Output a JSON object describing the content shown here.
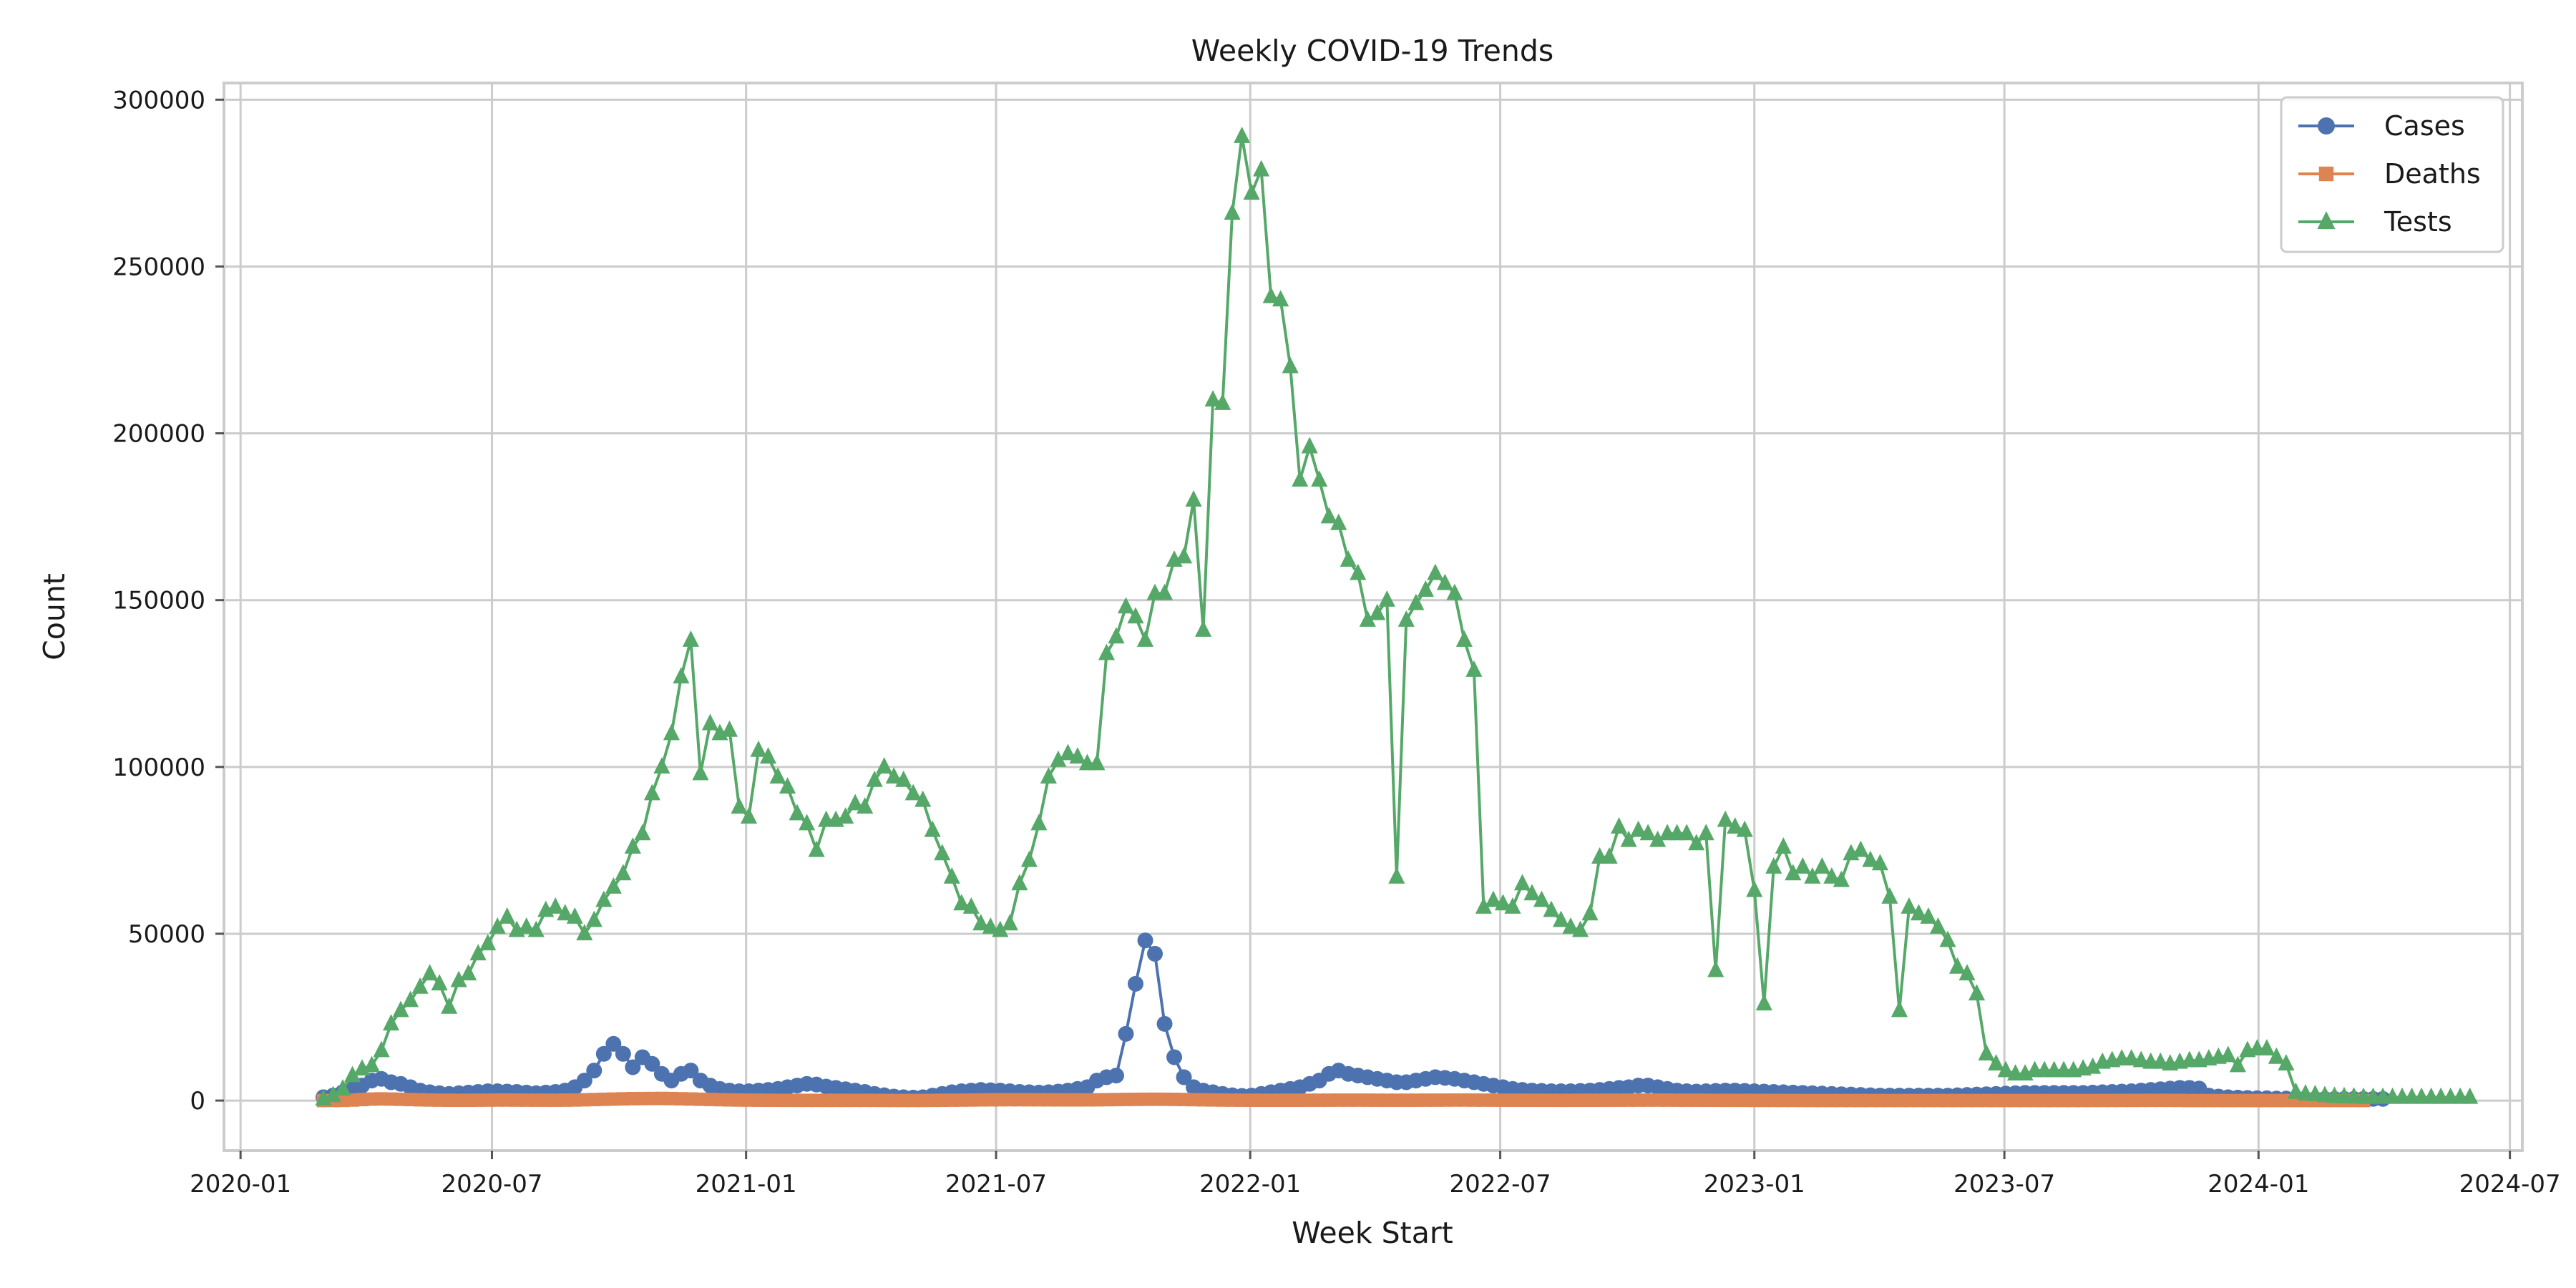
{
  "chart_data": {
    "type": "line",
    "title": "Weekly COVID-19 Trends",
    "xlabel": "Week Start",
    "ylabel": "Count",
    "x_range": [
      "2019-12-20",
      "2024-07-10"
    ],
    "ylim": [
      -15000,
      305000
    ],
    "x_ticks": [
      "2020-01",
      "2020-07",
      "2021-01",
      "2021-07",
      "2022-01",
      "2022-07",
      "2023-01",
      "2023-07",
      "2024-01",
      "2024-07"
    ],
    "y_ticks": [
      0,
      50000,
      100000,
      150000,
      200000,
      250000,
      300000
    ],
    "grid": true,
    "legend_position": "top-right",
    "x_start": "2020-03-01",
    "x_step_days": 7,
    "series": [
      {
        "name": "Cases",
        "color": "#4c72b0",
        "marker": "circle",
        "values": [
          1000,
          1500,
          2500,
          3500,
          4500,
          6000,
          6500,
          5500,
          5000,
          4000,
          3000,
          2500,
          2200,
          2000,
          2200,
          2400,
          2600,
          2800,
          2800,
          2700,
          2600,
          2400,
          2200,
          2400,
          2600,
          3000,
          4000,
          6000,
          9000,
          14000,
          17000,
          14000,
          10000,
          13000,
          11000,
          8000,
          6000,
          8000,
          9000,
          6000,
          4500,
          3500,
          3000,
          2800,
          2800,
          3000,
          3200,
          3500,
          4000,
          4500,
          5000,
          4800,
          4200,
          3800,
          3400,
          3000,
          2600,
          2000,
          1600,
          1200,
          1000,
          900,
          1000,
          1500,
          2000,
          2500,
          2800,
          3000,
          3200,
          3100,
          3000,
          2800,
          2600,
          2500,
          2400,
          2500,
          2700,
          3000,
          3500,
          4000,
          6000,
          7000,
          7500,
          20000,
          35000,
          48000,
          44000,
          23000,
          13000,
          7000,
          4000,
          3000,
          2500,
          2000,
          1600,
          1400,
          1500,
          2000,
          2500,
          3000,
          3500,
          4000,
          5000,
          6000,
          8000,
          9000,
          8000,
          7500,
          7000,
          6500,
          6000,
          5500,
          5500,
          6000,
          6500,
          7000,
          6800,
          6500,
          6000,
          5500,
          5000,
          4500,
          4000,
          3500,
          3200,
          3000,
          2900,
          2800,
          2800,
          2800,
          2900,
          3000,
          3200,
          3500,
          3800,
          4000,
          4500,
          4500,
          4000,
          3500,
          3000,
          2800,
          2700,
          2800,
          2900,
          3000,
          3000,
          2900,
          2800,
          2700,
          2600,
          2500,
          2400,
          2300,
          2200,
          2100,
          2000,
          1900,
          1800,
          1700,
          1600,
          1500,
          1500,
          1500,
          1500,
          1500,
          1500,
          1500,
          1500,
          1600,
          1700,
          1800,
          1900,
          2000,
          2100,
          2200,
          2300,
          2300,
          2300,
          2300,
          2300,
          2300,
          2300,
          2400,
          2500,
          2600,
          2700,
          2800,
          3000,
          3200,
          3400,
          3600,
          3800,
          3800,
          3600,
          1500,
          1200,
          1000,
          900,
          800,
          700,
          700,
          600,
          600,
          500,
          500,
          500,
          500,
          500,
          500,
          500,
          500,
          500,
          500
        ]
      },
      {
        "name": "Deaths",
        "color": "#dd8452",
        "marker": "square",
        "values": [
          0,
          10,
          50,
          150,
          300,
          450,
          500,
          450,
          380,
          300,
          220,
          160,
          120,
          90,
          80,
          90,
          110,
          130,
          150,
          150,
          140,
          130,
          120,
          110,
          110,
          130,
          170,
          230,
          300,
          380,
          450,
          520,
          580,
          600,
          620,
          640,
          600,
          540,
          470,
          400,
          330,
          260,
          200,
          160,
          130,
          110,
          90,
          80,
          70,
          60,
          60,
          60,
          60,
          60,
          60,
          60,
          60,
          55,
          50,
          45,
          40,
          40,
          45,
          60,
          80,
          110,
          140,
          170,
          200,
          220,
          240,
          250,
          250,
          240,
          230,
          220,
          210,
          200,
          200,
          210,
          230,
          260,
          300,
          340,
          370,
          390,
          400,
          390,
          360,
          320,
          270,
          220,
          180,
          150,
          130,
          110,
          100,
          90,
          90,
          90,
          90,
          90,
          100,
          110,
          120,
          130,
          130,
          130,
          120,
          110,
          100,
          100,
          100,
          110,
          120,
          130,
          140,
          150,
          150,
          140,
          130,
          120,
          110,
          100,
          95,
          90,
          85,
          80,
          80,
          80,
          85,
          90,
          95,
          100,
          110,
          120,
          130,
          140,
          140,
          130,
          120,
          110,
          100,
          90,
          80,
          70,
          65,
          60,
          55,
          50,
          45,
          40,
          35,
          30,
          30,
          25,
          25,
          20,
          20,
          20,
          20,
          20,
          20,
          20,
          20,
          20,
          20,
          20,
          20,
          20,
          20,
          20,
          20,
          20,
          20,
          20,
          20,
          20,
          20,
          20,
          20,
          20,
          25,
          30,
          35,
          40,
          45,
          50,
          55,
          60,
          60,
          55,
          50,
          10,
          5,
          5,
          5,
          5,
          5,
          5,
          5,
          5,
          5,
          5,
          5,
          5,
          5,
          5,
          5,
          5,
          5,
          5
        ]
      },
      {
        "name": "Tests",
        "color": "#55a868",
        "marker": "triangle",
        "values": [
          500,
          1500,
          3500,
          7500,
          9500,
          10500,
          15000,
          23000,
          27000,
          30000,
          34000,
          38000,
          35000,
          28000,
          36000,
          38000,
          44000,
          47000,
          52000,
          55000,
          51000,
          52000,
          51000,
          57000,
          58000,
          56000,
          55000,
          50000,
          54000,
          60000,
          64000,
          68000,
          76000,
          80000,
          92000,
          100000,
          110000,
          127000,
          138000,
          98000,
          113000,
          110000,
          111000,
          88000,
          85000,
          105000,
          103000,
          97000,
          94000,
          86000,
          83000,
          75000,
          84000,
          84000,
          85000,
          89000,
          88000,
          96000,
          100000,
          97000,
          96000,
          92000,
          90000,
          81000,
          74000,
          67000,
          59000,
          58000,
          53000,
          52000,
          51000,
          53000,
          65000,
          72000,
          83000,
          97000,
          102000,
          104000,
          103000,
          101000,
          101000,
          134000,
          139000,
          148000,
          145000,
          138000,
          152000,
          152000,
          162000,
          163000,
          180000,
          141000,
          210000,
          209000,
          266000,
          289000,
          272000,
          279000,
          241000,
          240000,
          220000,
          186000,
          196000,
          186000,
          175000,
          173000,
          162000,
          158000,
          144000,
          146000,
          150000,
          67000,
          144000,
          149000,
          153000,
          158000,
          155000,
          152000,
          138000,
          129000,
          58000,
          60000,
          59000,
          58000,
          65000,
          62000,
          60000,
          57000,
          54000,
          52000,
          51000,
          56000,
          73000,
          73000,
          82000,
          78000,
          81000,
          80000,
          78000,
          80000,
          80000,
          80000,
          77000,
          80000,
          39000,
          84000,
          82000,
          81000,
          63000,
          29000,
          70000,
          76000,
          68000,
          70000,
          67000,
          70000,
          67000,
          66000,
          74000,
          75000,
          72000,
          71000,
          61000,
          27000,
          58000,
          56000,
          55000,
          52000,
          48000,
          40000,
          38000,
          32000,
          14000,
          11000,
          9000,
          8000,
          8000,
          9000,
          9000,
          9000,
          9000,
          9000,
          9500,
          10000,
          11500,
          12000,
          12500,
          12500,
          12000,
          11500,
          11500,
          11000,
          11500,
          12000,
          12000,
          12500,
          13000,
          13500,
          10500,
          15000,
          15500,
          15500,
          13000,
          11000,
          2500,
          2000,
          1800,
          1500,
          1300,
          1200,
          1100,
          1000,
          1000,
          1000,
          1000,
          1000,
          1000,
          1000,
          1000,
          1000,
          1000,
          1000,
          1000
        ]
      }
    ]
  }
}
